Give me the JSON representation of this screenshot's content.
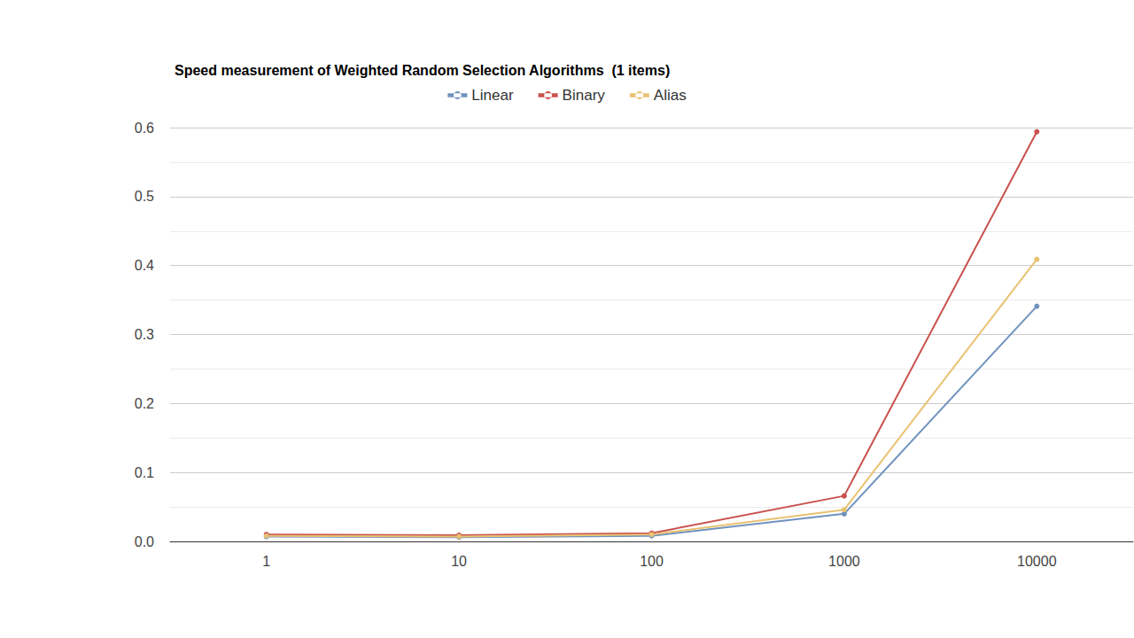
{
  "chart_data": {
    "type": "line",
    "title": "Speed measurement of Weighted Random Selection Algorithms  (1 items)",
    "categories": [
      "1",
      "10",
      "100",
      "1000",
      "10000"
    ],
    "series": [
      {
        "name": "Linear",
        "color": "#7092be",
        "marker": "circle",
        "values": [
          0.007,
          0.006,
          0.008,
          0.04,
          0.341
        ]
      },
      {
        "name": "Binary",
        "color": "#c9514d",
        "marker": "circle",
        "values": [
          0.01,
          0.009,
          0.012,
          0.066,
          0.594
        ]
      },
      {
        "name": "Alias",
        "color": "#e8c272",
        "marker": "circle",
        "values": [
          0.008,
          0.007,
          0.01,
          0.046,
          0.409
        ]
      }
    ],
    "ylim": [
      0,
      0.6
    ],
    "yticks": [
      {
        "value": 0,
        "label": "0.0"
      },
      0.1,
      0.2,
      0.3,
      0.4,
      0.5,
      0.6
    ],
    "grid": true,
    "legend": "top"
  }
}
